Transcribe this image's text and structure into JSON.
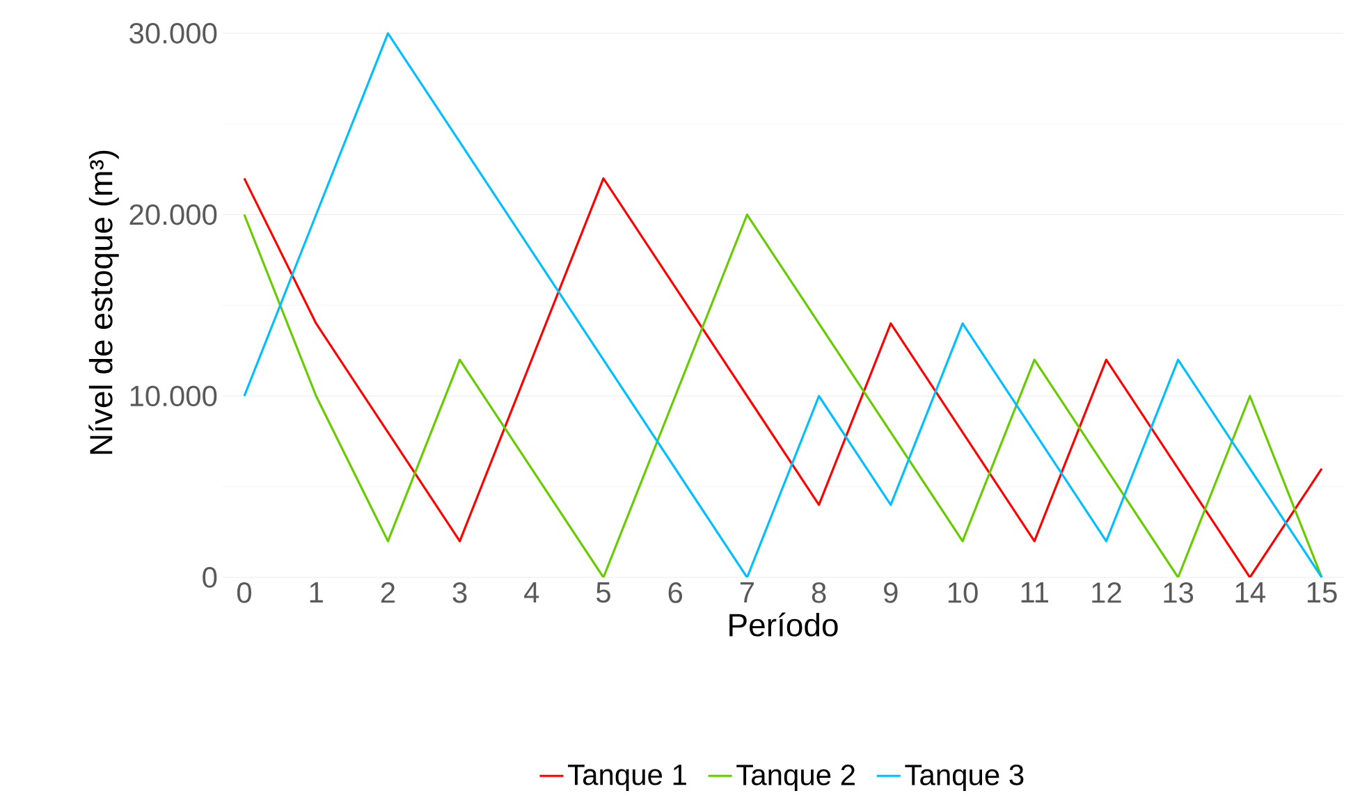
{
  "chart_data": {
    "type": "line",
    "xlabel": "Período",
    "ylabel": "Nível de estoque (m³)",
    "x": [
      0,
      1,
      2,
      3,
      4,
      5,
      6,
      7,
      8,
      9,
      10,
      11,
      12,
      13,
      14,
      15
    ],
    "xlim": [
      -0.3,
      15.3
    ],
    "xticks": [
      0,
      1,
      2,
      3,
      4,
      5,
      6,
      7,
      8,
      9,
      10,
      11,
      12,
      13,
      14,
      15
    ],
    "ylim": [
      0,
      30000
    ],
    "yticks": [
      {
        "value": 0,
        "label": "0"
      },
      {
        "value": 10000,
        "label": "10.000"
      },
      {
        "value": 20000,
        "label": "20.000"
      },
      {
        "value": 30000,
        "label": "30.000"
      }
    ],
    "grid": "y",
    "legend": "bottom",
    "marker": "none",
    "line_style": "solid",
    "series": [
      {
        "name": "Tanque 1",
        "color": "#ff0000",
        "values": [
          22000,
          14000,
          8000,
          2000,
          12000,
          22000,
          16000,
          10000,
          4000,
          14000,
          8000,
          2000,
          12000,
          6000,
          0,
          6000
        ]
      },
      {
        "name": "Tanque 2",
        "color": "#66cc00",
        "values": [
          20000,
          10000,
          2000,
          12000,
          6000,
          0,
          10000,
          20000,
          14000,
          8000,
          2000,
          12000,
          6000,
          0,
          10000,
          0
        ]
      },
      {
        "name": "Tanque 3",
        "color": "#00bfff",
        "values": [
          10000,
          20000,
          30000,
          24000,
          18000,
          12000,
          6000,
          0,
          10000,
          4000,
          14000,
          8000,
          2000,
          12000,
          6000,
          0
        ]
      }
    ]
  }
}
